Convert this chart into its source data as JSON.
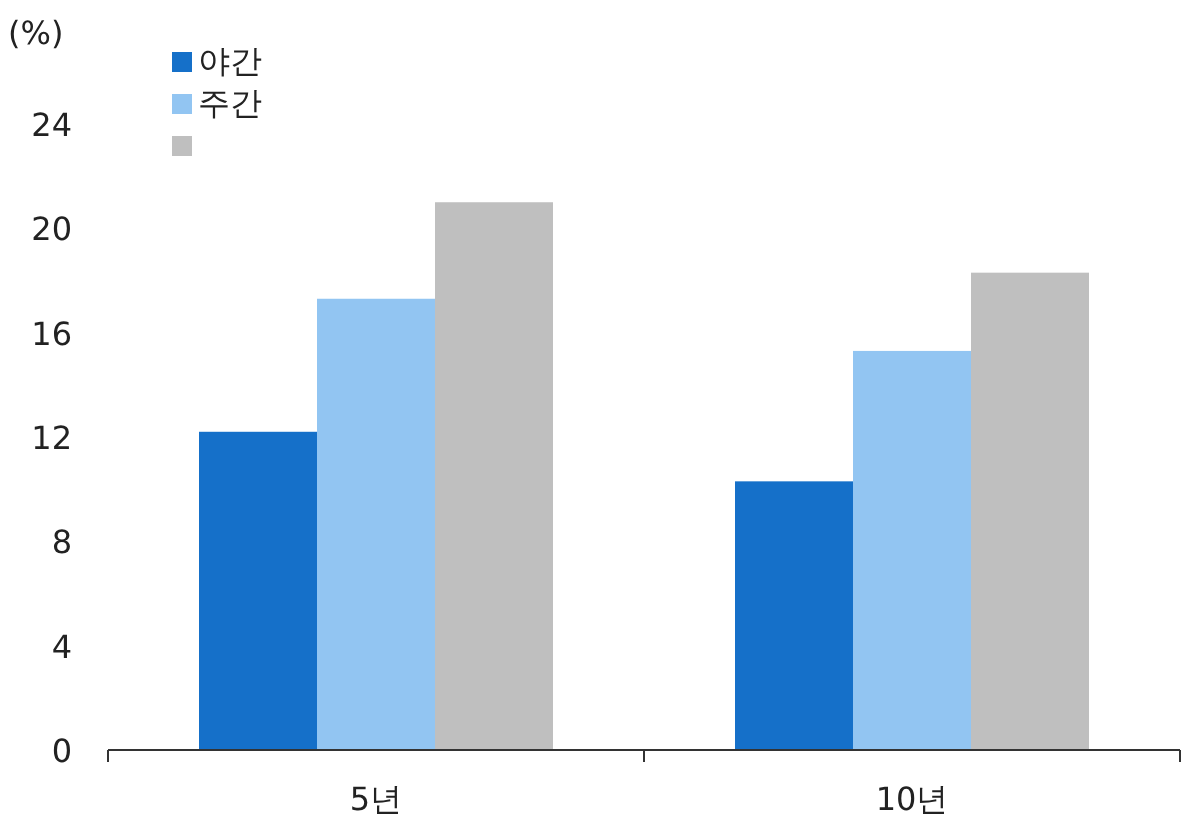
{
  "chart_data": {
    "type": "bar",
    "ylabel": "(%)",
    "categories": [
      "5년",
      "10년"
    ],
    "series": [
      {
        "name": "야간",
        "color": "#1570c9",
        "values": [
          12.2,
          10.3
        ]
      },
      {
        "name": "주간",
        "color": "#92c5f2",
        "values": [
          17.3,
          15.3
        ]
      },
      {
        "color": "#bfbfbf",
        "values": [
          21.0,
          18.3
        ]
      }
    ],
    "ylim": [
      0,
      24
    ],
    "yticks": [
      0,
      4,
      8,
      12,
      16,
      20,
      24
    ],
    "legend": "top left"
  }
}
